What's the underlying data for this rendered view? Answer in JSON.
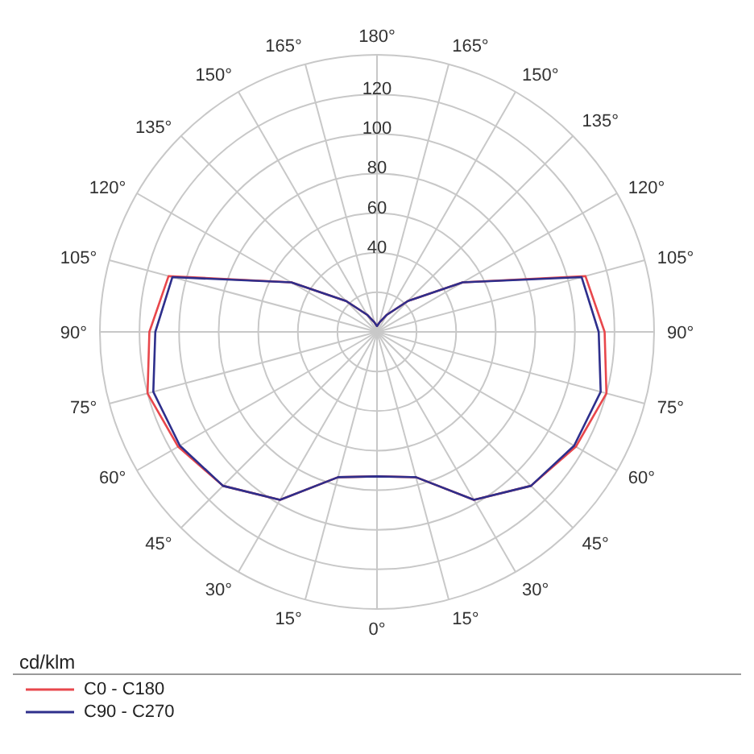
{
  "chart_data": {
    "type": "radar",
    "ylabel": "cd/klm",
    "categories": [
      "180°",
      "165°",
      "150°",
      "135°",
      "120°",
      "105°",
      "90°",
      "75°",
      "60°",
      "45°",
      "30°",
      "15°",
      "0°",
      "15°",
      "30°",
      "45°",
      "60°",
      "75°",
      "90°",
      "105°",
      "120°",
      "135°",
      "150°",
      "165°"
    ],
    "series": [
      {
        "name": "C0 - C180",
        "color": "#e8474c",
        "values": [
          3,
          5,
          10,
          22,
          50,
          109,
          115,
          120,
          116,
          110,
          98,
          76,
          73,
          76,
          98,
          110,
          116,
          120,
          115,
          109,
          50,
          22,
          10,
          5
        ]
      },
      {
        "name": "C90 - C270",
        "color": "#2e2f8c",
        "values": [
          3,
          5,
          10,
          22,
          50,
          107,
          112,
          117,
          115,
          110,
          98,
          76,
          73,
          76,
          98,
          110,
          115,
          117,
          112,
          107,
          50,
          22,
          10,
          5
        ]
      }
    ],
    "ylim": [
      0,
      140
    ],
    "yticks": [
      40,
      60,
      80,
      100,
      120
    ],
    "grid": true,
    "legend": "bottom left",
    "line_style": "solid"
  }
}
